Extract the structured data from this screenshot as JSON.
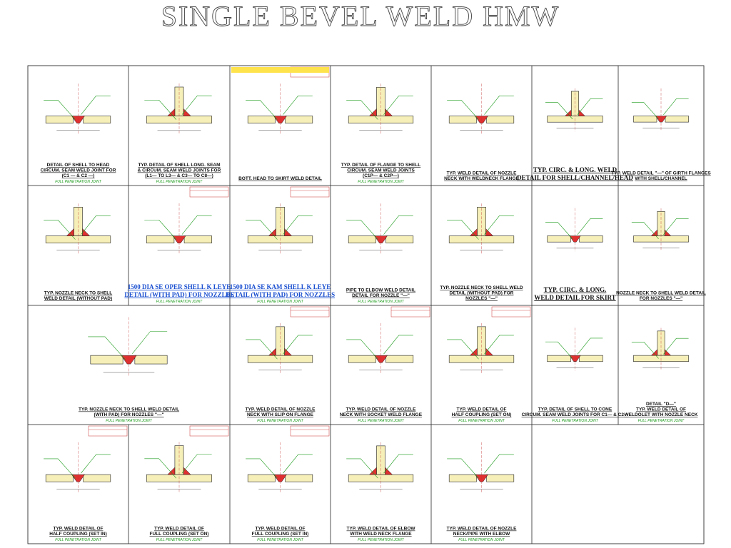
{
  "title": "SINGLE BEVEL WELD HMW",
  "cells": [
    {
      "caption": [
        "DETAIL OF SHELL TO HEAD",
        "CIRCUM. SEAM WELD JOINT FOR",
        "(C1 — & C2 —)"
      ],
      "note": "FULL PENETRATION JOINT"
    },
    {
      "caption": [
        "TYP. DETAIL OF SHELL LONG. SEAM",
        "& CIRCUM. SEAM WELD JOINTS FOR",
        "(L1— TO L3— & C3— TO C8—)"
      ],
      "note": "FULL PENETRATION JOINT"
    },
    {
      "caption": [
        "BOTT. HEAD TO SKIRT WELD DETAIL"
      ]
    },
    {
      "caption": [
        "TYP. DETAIL OF FLANGE TO SHELL",
        "CIRCUM. SEAM WELD JOINTS",
        "(C1P— & C2P—)"
      ],
      "note": "FULL PENETRATION JOINT"
    },
    {
      "caption": [
        "TYP. WELD DETAIL OF NOZZLE",
        "NECK WITH WELDNECK FLANGE"
      ]
    },
    {
      "caption": [
        "TYP. CIRC. & LONG. WELD",
        "DETAIL FOR SHELL/CHANNEL/HEAD"
      ]
    },
    {
      "caption": [
        "TYP. WELD DETAIL \"—\" OF GIRTH FLANGES",
        "WITH SHELL/CHANNEL"
      ]
    },
    {
      "caption": [
        "TYP. NOZZLE NECK TO SHELL",
        "WELD DETAIL (WITHOUT PAD)"
      ]
    },
    {
      "caption": [
        "1500 DIA SE OPER SHELL K LEYE",
        "DETAIL (WITH PAD) FOR NOZZLES"
      ],
      "note": "FULL PENETRATION JOINT"
    },
    {
      "caption": [
        "1500 DIA SE KAM SHELL K LEYE",
        "DETAIL (WITH PAD) FOR NOZZLES"
      ],
      "note": "FULL PENETRATION JOINT"
    },
    {
      "caption": [
        "PIPE TO ELBOW WELD DETAIL",
        "DETAIL FOR NOZZLE \"—\""
      ],
      "note": "FULL PENETRATION JOINT"
    },
    {
      "caption": [
        "TYP. NOZZLE NECK TO SHELL WELD",
        "DETAIL (WITHOUT PAD) FOR",
        "NOZZLES \"—\""
      ]
    },
    {
      "caption": [
        "TYP. CIRC. & LONG.",
        "WELD DETAIL FOR SKIRT"
      ]
    },
    {
      "caption": [
        "NOZZLE NECK TO SHELL WELD DETAIL",
        "FOR NOZZLES \"—\""
      ]
    },
    {
      "caption": [
        "TYP. NOZZLE NECK TO SHELL WELD DETAIL",
        "(WITH PAD) FOR NOZZLES \"—\""
      ],
      "note": "FULL PENETRATION JOINT"
    },
    {
      "caption": [
        "TYP. WELD DETAIL OF NOZZLE",
        "NECK WITH SLIP ON FLANGE"
      ],
      "note": "FULL PENETRATION JOINT"
    },
    {
      "caption": [
        "TYP. WELD DETAIL OF NOZZLE",
        "NECK WITH SOCKET WELD FLANGE"
      ],
      "note": "FULL PENETRATION JOINT"
    },
    {
      "caption": [
        "TYP. WELD DETAIL OF",
        "HALF COUPLING (SET ON)"
      ],
      "note": "FULL PENETRATION JOINT"
    },
    {
      "caption": [
        "TYP. DETAIL OF SHELL TO CONE",
        "CIRCUM. SEAM WELD JOINTS FOR C1— & C2—"
      ],
      "note": "FULL PENETRATION JOINT"
    },
    {
      "caption": [
        "DETAIL \"D—\"",
        "TYP. WELD DETAIL OF",
        "WELDOLET WITH NOZZLE NECK"
      ],
      "note": "FULL PENETRATION JOINT"
    },
    {
      "caption": [
        "TYP. WELD DETAIL OF",
        "HALF COUPLING (SET IN)"
      ],
      "note": "FULL PENETRATION JOINT"
    },
    {
      "caption": [
        "TYP. WELD DETAIL OF",
        "FULL COUPLING (SET ON)"
      ],
      "note": "FULL PENETRATION JOINT"
    },
    {
      "caption": [
        "TYP. WELD DETAIL OF",
        "FULL COUPLING (SET IN)"
      ],
      "note": "FULL PENETRATION JOINT"
    },
    {
      "caption": [
        "TYP. WELD DETAIL OF ELBOW",
        "WITH WELD NECK FLANGE"
      ],
      "note": "FULL PENETRATION JOINT"
    },
    {
      "caption": [
        "TYP. WELD DETAIL OF NOZZLE",
        "NECK/PIPE WITH ELBOW"
      ],
      "note": "FULL PENETRATION JOINT"
    }
  ]
}
